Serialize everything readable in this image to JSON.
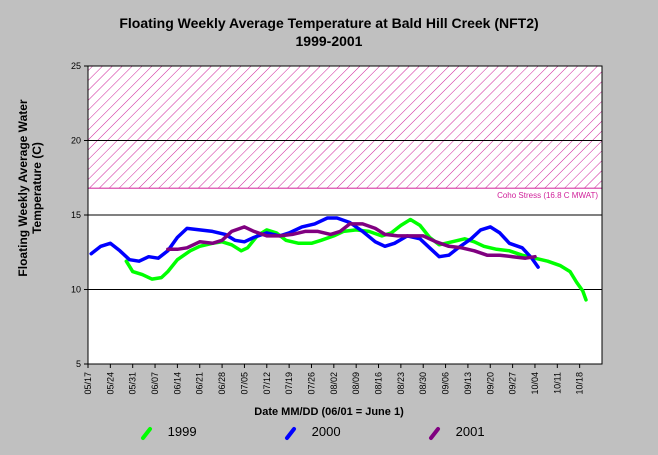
{
  "chart_data": {
    "type": "line",
    "title_line1": "Floating Weekly Average Temperature at Bald Hill Creek (NFT2)",
    "title_line2": "1999-2001",
    "ylabel_line1": "Floating Weekly Average Water",
    "ylabel_line2": "Temperature (C)",
    "xlabel": "Date MM/DD (06/01 = June 1)",
    "ylim": [
      5,
      25
    ],
    "yticks": [
      5,
      10,
      15,
      20,
      25
    ],
    "x_start": "05/17",
    "x_end": "10/25",
    "x_tick_labels": [
      "05/17",
      "05/24",
      "05/31",
      "06/07",
      "06/14",
      "06/21",
      "06/28",
      "07/05",
      "07/12",
      "07/19",
      "07/26",
      "08/02",
      "08/09",
      "08/16",
      "08/23",
      "08/30",
      "09/06",
      "09/13",
      "09/20",
      "09/27",
      "10/04",
      "10/11",
      "10/18"
    ],
    "gridlines_y": [
      10,
      15,
      20
    ],
    "threshold": {
      "label": "Coho Stress (16.8 C MWAT)",
      "from": 16.8,
      "to": 25,
      "color": "#d0209a"
    },
    "series": [
      {
        "name": "1999",
        "color": "#00ff00",
        "points": [
          [
            "05/29",
            11.9
          ],
          [
            "05/31",
            11.2
          ],
          [
            "06/03",
            11.0
          ],
          [
            "06/06",
            10.7
          ],
          [
            "06/09",
            10.8
          ],
          [
            "06/11",
            11.2
          ],
          [
            "06/14",
            12.0
          ],
          [
            "06/18",
            12.6
          ],
          [
            "06/21",
            12.9
          ],
          [
            "06/25",
            13.1
          ],
          [
            "06/28",
            13.2
          ],
          [
            "07/01",
            13.0
          ],
          [
            "07/04",
            12.6
          ],
          [
            "07/06",
            12.8
          ],
          [
            "07/09",
            13.6
          ],
          [
            "07/12",
            14.0
          ],
          [
            "07/15",
            13.8
          ],
          [
            "07/18",
            13.3
          ],
          [
            "07/22",
            13.1
          ],
          [
            "07/26",
            13.1
          ],
          [
            "07/29",
            13.3
          ],
          [
            "08/02",
            13.6
          ],
          [
            "08/05",
            13.9
          ],
          [
            "08/09",
            14.0
          ],
          [
            "08/13",
            13.9
          ],
          [
            "08/17",
            13.6
          ],
          [
            "08/20",
            13.8
          ],
          [
            "08/23",
            14.3
          ],
          [
            "08/26",
            14.7
          ],
          [
            "08/29",
            14.3
          ],
          [
            "09/01",
            13.5
          ],
          [
            "09/04",
            13.0
          ],
          [
            "09/08",
            13.2
          ],
          [
            "09/12",
            13.4
          ],
          [
            "09/15",
            13.2
          ],
          [
            "09/18",
            12.9
          ],
          [
            "09/22",
            12.7
          ],
          [
            "09/26",
            12.6
          ],
          [
            "09/30",
            12.3
          ],
          [
            "10/04",
            12.1
          ],
          [
            "10/08",
            11.9
          ],
          [
            "10/12",
            11.6
          ],
          [
            "10/15",
            11.2
          ],
          [
            "10/17",
            10.5
          ],
          [
            "10/19",
            9.9
          ],
          [
            "10/20",
            9.3
          ]
        ]
      },
      {
        "name": "2000",
        "color": "#0000ff",
        "points": [
          [
            "05/18",
            12.4
          ],
          [
            "05/21",
            12.9
          ],
          [
            "05/24",
            13.1
          ],
          [
            "05/27",
            12.6
          ],
          [
            "05/30",
            12.0
          ],
          [
            "06/02",
            11.9
          ],
          [
            "06/05",
            12.2
          ],
          [
            "06/08",
            12.1
          ],
          [
            "06/11",
            12.6
          ],
          [
            "06/14",
            13.5
          ],
          [
            "06/17",
            14.1
          ],
          [
            "06/21",
            14.0
          ],
          [
            "06/25",
            13.9
          ],
          [
            "06/29",
            13.7
          ],
          [
            "07/02",
            13.3
          ],
          [
            "07/05",
            13.2
          ],
          [
            "07/08",
            13.5
          ],
          [
            "07/12",
            13.8
          ],
          [
            "07/16",
            13.6
          ],
          [
            "07/19",
            13.8
          ],
          [
            "07/23",
            14.2
          ],
          [
            "07/27",
            14.4
          ],
          [
            "07/31",
            14.8
          ],
          [
            "08/03",
            14.8
          ],
          [
            "08/07",
            14.5
          ],
          [
            "08/11",
            13.9
          ],
          [
            "08/15",
            13.2
          ],
          [
            "08/18",
            12.9
          ],
          [
            "08/21",
            13.1
          ],
          [
            "08/25",
            13.6
          ],
          [
            "08/29",
            13.4
          ],
          [
            "09/01",
            12.8
          ],
          [
            "09/04",
            12.2
          ],
          [
            "09/07",
            12.3
          ],
          [
            "09/10",
            12.8
          ],
          [
            "09/14",
            13.4
          ],
          [
            "09/17",
            14.0
          ],
          [
            "09/20",
            14.2
          ],
          [
            "09/23",
            13.8
          ],
          [
            "09/26",
            13.1
          ],
          [
            "09/30",
            12.8
          ],
          [
            "10/03",
            12.1
          ],
          [
            "10/05",
            11.5
          ]
        ]
      },
      {
        "name": "2001",
        "color": "#800080",
        "points": [
          [
            "06/11",
            12.7
          ],
          [
            "06/14",
            12.7
          ],
          [
            "06/17",
            12.8
          ],
          [
            "06/21",
            13.2
          ],
          [
            "06/25",
            13.1
          ],
          [
            "06/28",
            13.3
          ],
          [
            "07/01",
            13.9
          ],
          [
            "07/05",
            14.2
          ],
          [
            "07/08",
            13.9
          ],
          [
            "07/12",
            13.6
          ],
          [
            "07/16",
            13.6
          ],
          [
            "07/20",
            13.7
          ],
          [
            "07/24",
            13.9
          ],
          [
            "07/28",
            13.9
          ],
          [
            "08/01",
            13.7
          ],
          [
            "08/04",
            13.9
          ],
          [
            "08/07",
            14.4
          ],
          [
            "08/11",
            14.4
          ],
          [
            "08/15",
            14.1
          ],
          [
            "08/18",
            13.7
          ],
          [
            "08/22",
            13.6
          ],
          [
            "08/26",
            13.6
          ],
          [
            "08/30",
            13.6
          ],
          [
            "09/03",
            13.2
          ],
          [
            "09/07",
            12.9
          ],
          [
            "09/11",
            12.8
          ],
          [
            "09/15",
            12.6
          ],
          [
            "09/19",
            12.3
          ],
          [
            "09/23",
            12.3
          ],
          [
            "09/27",
            12.2
          ],
          [
            "10/01",
            12.1
          ],
          [
            "10/04",
            12.2
          ]
        ]
      }
    ]
  }
}
